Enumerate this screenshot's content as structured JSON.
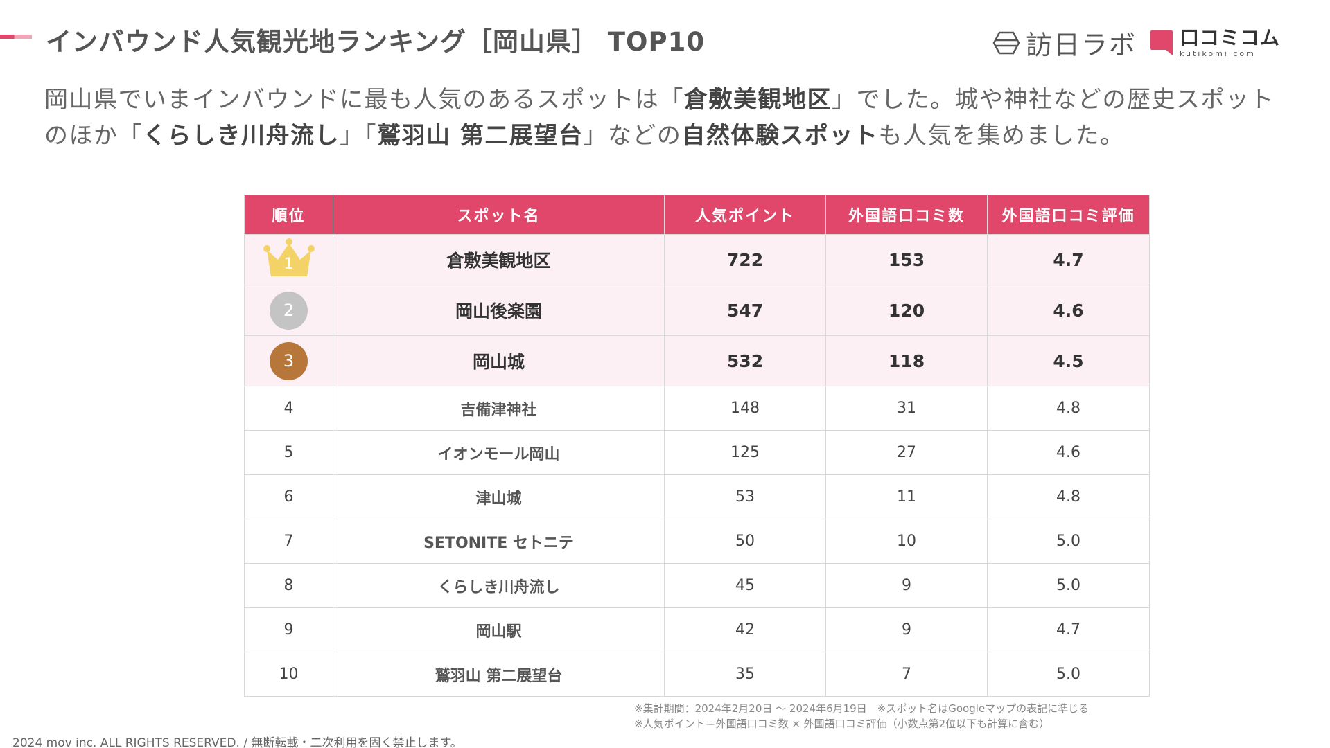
{
  "header": {
    "title": "インバウンド人気観光地ランキング［岡山県］ TOP10",
    "logo_houjin": "訪日ラボ",
    "logo_kuchikomi_main": "口コミコム",
    "logo_kuchikomi_sub": "kutikomi com"
  },
  "intro": {
    "p1": "岡山県でいまインバウンドに最も人気のあるスポットは「",
    "b1": "倉敷美観地区",
    "p2": "」でした。城や神社などの歴史スポットのほか「",
    "b2": "くらしき川舟流し",
    "p3": "」「",
    "b3": "鷲羽山 第二展望台",
    "p4": "」などの",
    "b4": "自然体験スポット",
    "p5": "も人気を集めました。"
  },
  "table": {
    "headers": [
      "順位",
      "スポット名",
      "人気ポイント",
      "外国語口コミ数",
      "外国語口コミ評価"
    ],
    "rows": [
      {
        "rank": "1",
        "name": "倉敷美観地区",
        "points": "722",
        "reviews": "153",
        "rating": "4.7"
      },
      {
        "rank": "2",
        "name": "岡山後楽園",
        "points": "547",
        "reviews": "120",
        "rating": "4.6"
      },
      {
        "rank": "3",
        "name": "岡山城",
        "points": "532",
        "reviews": "118",
        "rating": "4.5"
      },
      {
        "rank": "4",
        "name": "吉備津神社",
        "points": "148",
        "reviews": "31",
        "rating": "4.8"
      },
      {
        "rank": "5",
        "name": "イオンモール岡山",
        "points": "125",
        "reviews": "27",
        "rating": "4.6"
      },
      {
        "rank": "6",
        "name": "津山城",
        "points": "53",
        "reviews": "11",
        "rating": "4.8"
      },
      {
        "rank": "7",
        "name": "SETONITE セトニテ",
        "points": "50",
        "reviews": "10",
        "rating": "5.0"
      },
      {
        "rank": "8",
        "name": "くらしき川舟流し",
        "points": "45",
        "reviews": "9",
        "rating": "5.0"
      },
      {
        "rank": "9",
        "name": "岡山駅",
        "points": "42",
        "reviews": "9",
        "rating": "4.7"
      },
      {
        "rank": "10",
        "name": "鷲羽山 第二展望台",
        "points": "35",
        "reviews": "7",
        "rating": "5.0"
      }
    ]
  },
  "notes": {
    "line1": "※集計期間：2024年2月20日 〜 2024年6月19日　※スポット名はGoogleマップの表記に準じる",
    "line2": "※人気ポイント＝外国語口コミ数 × 外国語口コミ評価（小数点第2位以下も計算に含む）"
  },
  "footer": {
    "copyright": "2024 mov inc. ALL RIGHTS RESERVED. / 無断転載・二次利用を固く禁止します。"
  },
  "colors": {
    "accent": "#e0476a",
    "top_row_bg": "#fdf0f4",
    "gold": "#f3d267",
    "silver": "#c4c4c4",
    "bronze": "#b8773a"
  }
}
